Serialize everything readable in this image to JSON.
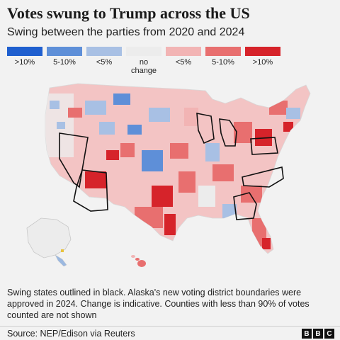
{
  "header": {
    "title": "Votes swung to Trump across the US",
    "subtitle": "Swing between the parties from 2020 and 2024"
  },
  "legend": [
    {
      "label": ">10%",
      "color": "#1f5fcf"
    },
    {
      "label": "5-10%",
      "color": "#5e8fd8"
    },
    {
      "label": "<5%",
      "color": "#a8c0e4"
    },
    {
      "label": "no change",
      "color": "#ececec"
    },
    {
      "label": "<5%",
      "color": "#f2b4b4"
    },
    {
      "label": "5-10%",
      "color": "#e86f6f"
    },
    {
      "label": ">10%",
      "color": "#d6232a"
    }
  ],
  "note": "Swing states outlined in black. Alaska's new voting district boundaries were approved in 2024. Change is indicative. Counties with less than 90% of votes counted are not shown",
  "footer": {
    "source": "Source: NEP/Edison via Reuters",
    "logo": [
      "B",
      "B",
      "C"
    ]
  }
}
